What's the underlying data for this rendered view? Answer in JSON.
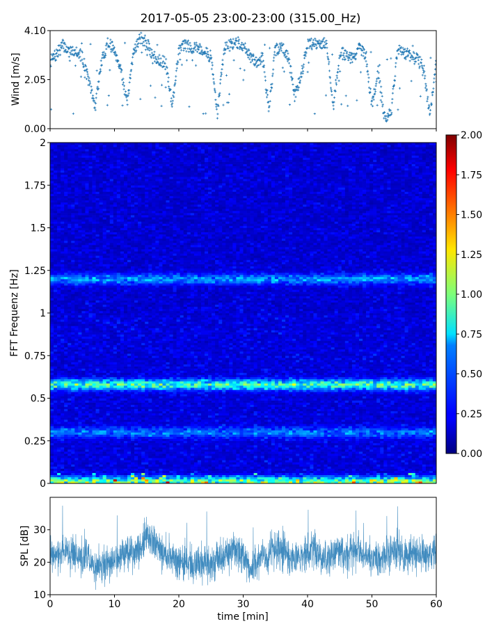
{
  "title": "2017-05-05 23:00-23:00 (315.00_Hz)",
  "colors": {
    "wind_marker": "#1f77b4",
    "spl_line": "#1f77b4"
  },
  "chart_data": [
    {
      "type": "scatter",
      "ylabel": "Wind [m/s]",
      "ylim": [
        0,
        4.1
      ],
      "yticks": [
        "0.00",
        "2.05",
        "4.10"
      ],
      "xlim": [
        0,
        60
      ],
      "marker": "+",
      "series": [
        {
          "x": [
            0,
            1,
            2,
            3,
            4,
            5,
            6,
            7,
            8,
            9,
            10,
            11,
            12,
            13,
            14,
            15,
            16,
            17,
            18,
            19,
            20,
            21,
            22,
            23,
            24,
            25,
            26,
            27,
            28,
            29,
            30,
            31,
            32,
            33,
            34,
            35,
            36,
            37,
            38,
            39,
            40,
            41,
            42,
            43,
            44,
            45,
            46,
            47,
            48,
            49,
            50,
            51,
            52,
            53,
            54,
            55,
            56,
            57,
            58,
            59,
            60
          ],
          "y": [
            2.8,
            3.1,
            3.5,
            3.2,
            3.3,
            3.0,
            2.0,
            0.9,
            2.8,
            3.6,
            3.3,
            2.5,
            1.0,
            3.3,
            3.8,
            3.6,
            3.0,
            2.9,
            2.7,
            1.0,
            3.3,
            3.5,
            3.4,
            3.4,
            3.2,
            3.0,
            0.6,
            3.3,
            3.5,
            3.6,
            3.5,
            3.0,
            2.8,
            3.0,
            0.8,
            3.3,
            3.4,
            3.0,
            1.4,
            2.2,
            3.6,
            3.5,
            3.6,
            3.5,
            0.9,
            3.2,
            3.1,
            2.9,
            3.4,
            3.0,
            1.0,
            2.4,
            0.4,
            0.7,
            3.3,
            3.2,
            3.0,
            2.9,
            2.6,
            0.5,
            2.8
          ]
        }
      ]
    },
    {
      "type": "heatmap",
      "ylabel": "FFT Frequenz [Hz]",
      "ylim": [
        0,
        2
      ],
      "yticks": [
        "0",
        "0.25",
        "0.5",
        "0.75",
        "1",
        "1.25",
        "1.5",
        "1.75",
        "2"
      ],
      "xlim": [
        0,
        60
      ],
      "colormap": "jet",
      "colorbar": {
        "min": 0.0,
        "max": 2.0,
        "ticks": [
          "0.00",
          "0.25",
          "0.50",
          "0.75",
          "1.00",
          "1.25",
          "1.50",
          "1.75",
          "2.00"
        ]
      },
      "bands": [
        {
          "freq": 0.01,
          "level": 0.95
        },
        {
          "freq": 0.58,
          "level": 0.8
        },
        {
          "freq": 1.2,
          "level": 0.45
        },
        {
          "freq": 0.3,
          "level": 0.35
        }
      ]
    },
    {
      "type": "line",
      "ylabel": "SPL [dB]",
      "xlabel": "time [min]",
      "ylim": [
        10,
        40
      ],
      "yticks": [
        "10",
        "20",
        "30"
      ],
      "xlim": [
        0,
        60
      ],
      "xticks": [
        "0",
        "10",
        "20",
        "30",
        "40",
        "50",
        "60"
      ],
      "series": [
        {
          "x": [
            0,
            1,
            2,
            3,
            4,
            5,
            6,
            7,
            8,
            9,
            10,
            11,
            12,
            13,
            14,
            15,
            16,
            17,
            18,
            19,
            20,
            21,
            22,
            23,
            24,
            25,
            26,
            27,
            28,
            29,
            30,
            31,
            32,
            33,
            34,
            35,
            36,
            37,
            38,
            39,
            40,
            41,
            42,
            43,
            44,
            45,
            46,
            47,
            48,
            49,
            50,
            51,
            52,
            53,
            54,
            55,
            56,
            57,
            58,
            59,
            60
          ],
          "y": [
            22,
            23,
            24,
            23,
            22,
            22,
            21,
            18,
            19,
            20,
            21,
            22,
            23,
            23,
            24,
            28,
            27,
            24,
            22,
            21,
            20,
            20,
            19,
            20,
            20,
            19,
            21,
            22,
            23,
            24,
            22,
            18,
            20,
            22,
            22,
            24,
            23,
            22,
            21,
            22,
            23,
            24,
            22,
            21,
            23,
            24,
            22,
            23,
            23,
            22,
            21,
            20,
            22,
            23,
            24,
            21,
            22,
            23,
            22,
            23,
            23
          ]
        }
      ]
    }
  ]
}
